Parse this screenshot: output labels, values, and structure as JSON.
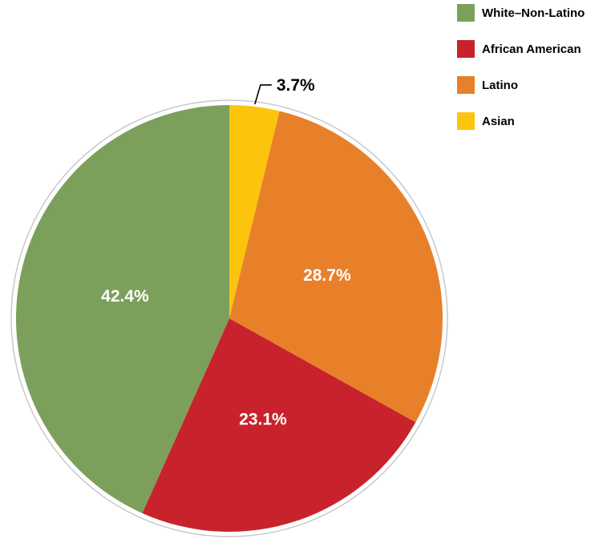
{
  "page": {
    "background_color": "#ffffff"
  },
  "chart_data": {
    "type": "pie",
    "title": "",
    "slices": [
      {
        "label": "White–Non-Latino",
        "value": 42.4,
        "display": "42.4%",
        "color": "#7CA05C",
        "text_color": "#ffffff",
        "label_placement": "inside"
      },
      {
        "label": "African American",
        "value": 23.1,
        "display": "23.1%",
        "color": "#C8232C",
        "text_color": "#ffffff",
        "label_placement": "inside"
      },
      {
        "label": "Latino",
        "value": 28.7,
        "display": "28.7%",
        "color": "#E8802A",
        "text_color": "#ffffff",
        "label_placement": "inside"
      },
      {
        "label": "Asian",
        "value": 3.7,
        "display": "3.7%",
        "color": "#FCC40D",
        "text_color": "#000000",
        "label_placement": "callout"
      }
    ],
    "draw_order": [
      "Asian",
      "Latino",
      "African American",
      "White–Non-Latino"
    ],
    "start_angle_deg": 0,
    "direction": "clockwise",
    "legend_position": "top-right",
    "legend_order": [
      "White–Non-Latino",
      "African American",
      "Latino",
      "Asian"
    ],
    "outline_color": "#C9C9C9",
    "callout_line_color": "#000000"
  }
}
